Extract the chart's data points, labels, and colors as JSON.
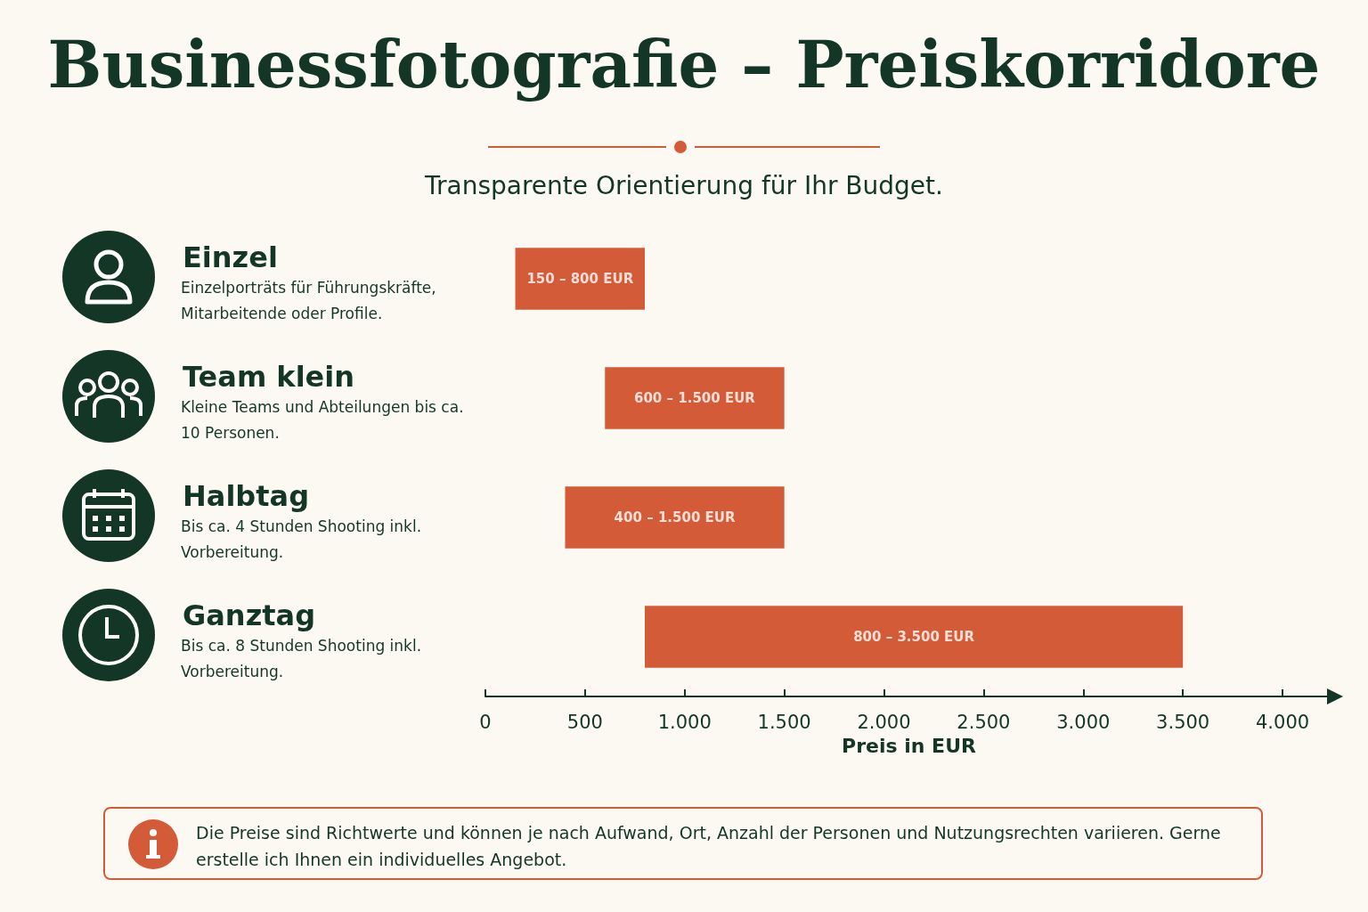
{
  "chart_data": {
    "type": "bar",
    "orientation": "horizontal",
    "title": "Businessfotografie – Preiskorridore",
    "subtitle": "Transparente Orientierung für Ihr Budget.",
    "categories": [
      "Einzel",
      "Team klein",
      "Halbtag",
      "Ganztag"
    ],
    "base": [
      150,
      600,
      400,
      800
    ],
    "values": [
      650,
      900,
      1100,
      2700
    ],
    "color": "#d35b37",
    "xlim": [
      0,
      4250
    ],
    "xticks": [
      0,
      500,
      {
        "value": 1000,
        "label": "1.000"
      },
      {
        "value": 1500,
        "label": "1.500"
      },
      {
        "value": 2000,
        "label": "2.000"
      },
      {
        "value": 2500,
        "label": "2.500"
      },
      {
        "value": 3000,
        "label": "3.000"
      },
      {
        "value": 3500,
        "label": "3.500"
      },
      {
        "value": 4000,
        "label": "4.000"
      }
    ],
    "xlabel": "Preis in EUR",
    "grid": false,
    "annotations": [
      {
        "text": "150 – 800 EUR",
        "x": 475,
        "y": "Einzel"
      },
      {
        "text": "600 – 1.500 EUR",
        "x": 1050,
        "y": "Team klein"
      },
      {
        "text": "400 – 1.500 EUR",
        "x": 950,
        "y": "Halbtag"
      },
      {
        "text": "800 – 3.500 EUR",
        "x": 2150,
        "y": "Ganztag"
      },
      "Einzelporträts für Führungskräfte, Mitarbeitende oder Profile.",
      "Kleine Teams und Abteilungen bis ca. 10 Personen.",
      "Bis ca. 4 Stunden Shooting inkl. Vorbereitung.",
      "Bis ca. 8 Stunden Shooting inkl. Vorbereitung.",
      "Die Preise sind Richtwerte und können je nach Aufwand, Ort, Anzahl der Personen und Nutzungsrechten variieren. Gerne erstelle ich Ihnen ein individuelles Angebot."
    ]
  }
}
